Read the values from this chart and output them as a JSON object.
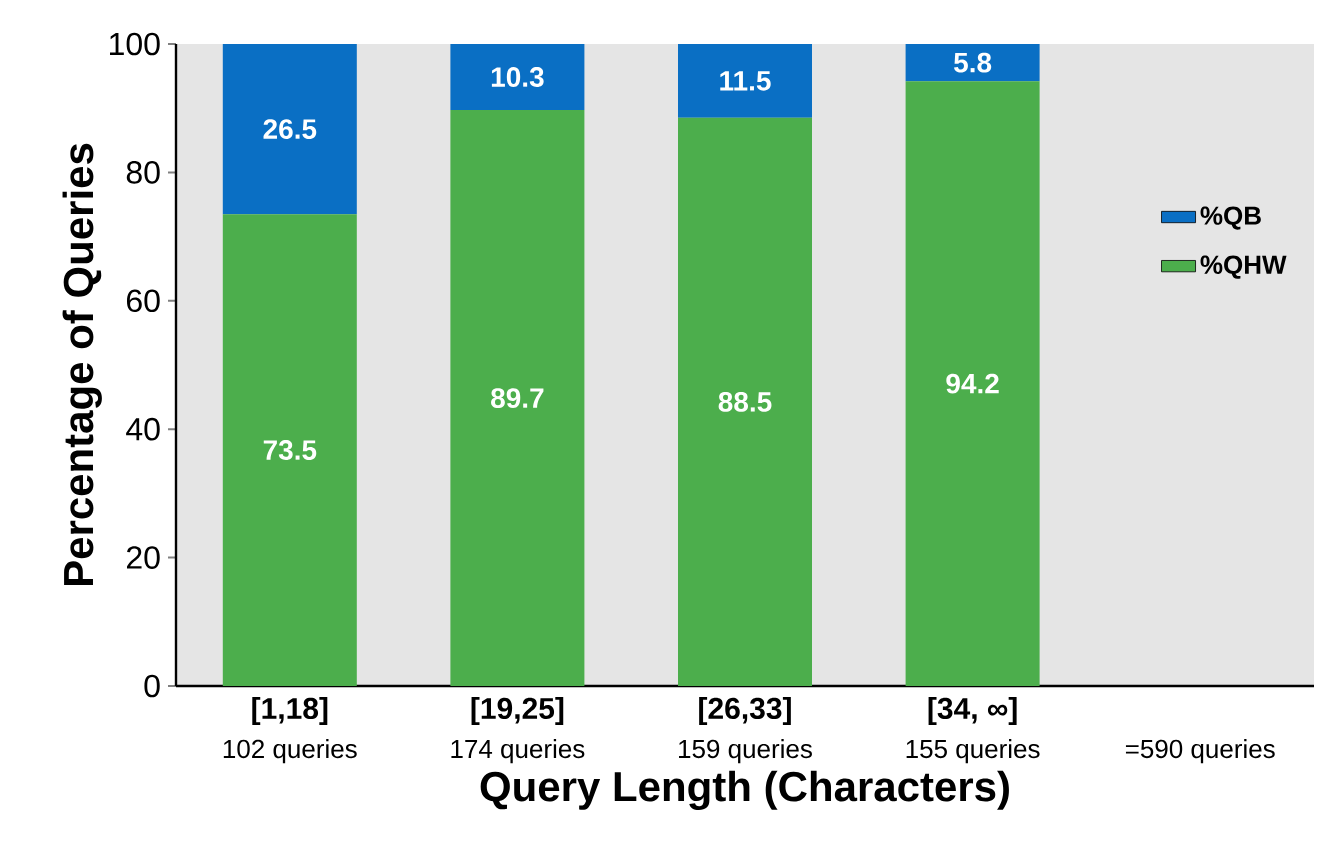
{
  "chart_data": {
    "type": "bar",
    "stacked": true,
    "categories": [
      "[1,18]",
      "[19,25]",
      "[26,33]",
      "[34, ∞]",
      null
    ],
    "series": [
      {
        "name": "%QHW",
        "color": "#4cae4c",
        "values": [
          73.5,
          89.7,
          88.5,
          94.2,
          null
        ]
      },
      {
        "name": "%QB",
        "color": "#0a6fc4",
        "values": [
          26.5,
          10.3,
          11.5,
          5.8,
          null
        ]
      }
    ],
    "xlabel": "Query Length (Characters)",
    "ylabel": "Percentage of Queries",
    "ylim": [
      0,
      100
    ],
    "yticks": [
      0,
      20,
      40,
      60,
      80,
      100
    ],
    "annotations": [
      "102 queries",
      "174 queries",
      "159 queries",
      "155 queries",
      "=590 queries"
    ],
    "data_labels": true,
    "legend": "right",
    "grid": false
  }
}
